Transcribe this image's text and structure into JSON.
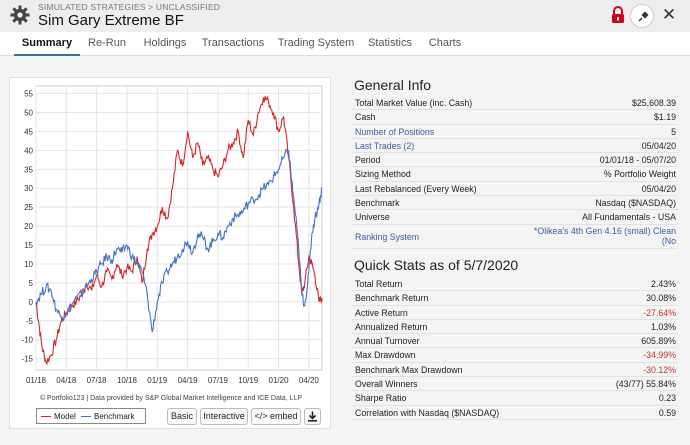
{
  "header": {
    "breadcrumb": "SIMULATED STRATEGIES > UNCLASSIFIED",
    "title": "Sim Gary Extreme BF",
    "close_label": "✕"
  },
  "tabs": [
    {
      "label": "Summary",
      "active": true
    },
    {
      "label": "Re-Run"
    },
    {
      "label": "Holdings"
    },
    {
      "label": "Transactions"
    },
    {
      "label": "Trading System"
    },
    {
      "label": "Statistics"
    },
    {
      "label": "Charts"
    }
  ],
  "chart": {
    "credit": "© Portfolio123 | Data provided by S&P Global Market Intelligence and ICE Data, LLP",
    "buttons": {
      "basic": "Basic",
      "interactive": "Interactive",
      "embed": "</> embed"
    }
  },
  "chart_data": {
    "type": "line",
    "x_ticks": [
      "01/18",
      "04/18",
      "07/18",
      "10/18",
      "01/19",
      "04/19",
      "07/19",
      "10/19",
      "01/20",
      "04/20"
    ],
    "y_ticks": [
      55,
      50,
      45,
      40,
      35,
      30,
      25,
      20,
      15,
      10,
      5,
      0,
      -5,
      -10,
      -15
    ],
    "ylim": [
      -18,
      57
    ],
    "grid": true,
    "legend": "bottom-left",
    "series": [
      {
        "name": "Model",
        "color": "#d62728",
        "x": [
          0,
          0.3,
          0.6,
          1,
          1.5,
          2,
          2.5,
          3,
          3.5,
          4,
          4.5,
          5,
          5.5,
          6,
          6.5,
          7,
          7.5,
          8,
          8.5,
          9,
          9.5,
          10,
          10.5,
          11,
          11.5,
          12,
          12.5,
          13,
          13.5,
          14,
          14.5,
          15,
          15.5,
          16,
          16.5,
          17,
          17.5,
          18,
          18.5,
          19,
          19.5,
          20,
          20.5,
          21,
          21.5,
          22,
          22.5,
          23,
          23.5,
          24,
          24.5,
          25,
          25.5,
          26,
          26.3,
          26.6,
          27,
          27.3,
          27.6,
          28,
          28.3
        ],
        "values": [
          0,
          -6,
          -12,
          -16,
          -14,
          -10,
          -5,
          -3,
          -1,
          0,
          2,
          5,
          3,
          7,
          4,
          8,
          6,
          10,
          7,
          9,
          8,
          12,
          5,
          14,
          18,
          20,
          25,
          22,
          30,
          40,
          36,
          45,
          38,
          42,
          36,
          38,
          35,
          33,
          36,
          40,
          42,
          45,
          38,
          48,
          44,
          50,
          54,
          53,
          50,
          45,
          49,
          38,
          25,
          10,
          2,
          5,
          12,
          10,
          7,
          0,
          1
        ]
      },
      {
        "name": "Benchmark",
        "color": "#4472c4",
        "x": [
          0,
          0.5,
          1,
          1.5,
          2,
          2.5,
          3,
          3.5,
          4,
          4.5,
          5,
          5.5,
          6,
          6.5,
          7,
          7.5,
          8,
          8.5,
          9,
          9.5,
          10,
          10.5,
          11,
          11.5,
          12,
          12.5,
          13,
          13.5,
          14,
          14.5,
          15,
          15.5,
          16,
          16.5,
          17,
          17.5,
          18,
          18.5,
          19,
          19.5,
          20,
          20.5,
          21,
          21.5,
          22,
          22.5,
          23,
          23.5,
          24,
          24.5,
          25,
          25.3,
          25.6,
          26,
          26.3,
          26.6,
          27,
          27.3,
          27.6,
          28,
          28.3
        ],
        "values": [
          0,
          2,
          4,
          3,
          -2,
          -4,
          -3,
          -1,
          1,
          2,
          4,
          6,
          8,
          10,
          12,
          11,
          14,
          13,
          15,
          12,
          10,
          8,
          2,
          -8,
          0,
          5,
          8,
          10,
          12,
          14,
          16,
          13,
          18,
          17,
          14,
          16,
          18,
          17,
          20,
          22,
          23,
          24,
          26,
          27,
          28,
          30,
          31,
          33,
          35,
          38,
          40,
          32,
          25,
          14,
          2,
          -1,
          8,
          18,
          22,
          26,
          30
        ]
      }
    ]
  },
  "general_info": {
    "title": "General Info",
    "rows": [
      {
        "label": "Total Market Value (inc. Cash)",
        "value": "$25,608.39"
      },
      {
        "label": "Cash",
        "value": "$1.19"
      },
      {
        "label": "Number of Positions",
        "value": "5",
        "link": true
      },
      {
        "label": "Last Trades (2)",
        "value": "05/04/20",
        "link": true
      },
      {
        "label": "Period",
        "value": "01/01/18 - 05/07/20"
      },
      {
        "label": "Sizing Method",
        "value": "% Portfolio Weight"
      },
      {
        "label": "Last Rebalanced (Every Week)",
        "value": "05/04/20"
      },
      {
        "label": "Benchmark",
        "value": "Nasdaq ($NASDAQ)"
      },
      {
        "label": "Universe",
        "value": "All Fundamentals - USA"
      },
      {
        "label": "Ranking System",
        "value": "*Olikea's 4th Gen 4.16 (small) Clean (No",
        "link": true,
        "tall": true
      }
    ]
  },
  "quick_stats": {
    "title": "Quick Stats as of 5/7/2020",
    "rows": [
      {
        "label": "Total Return",
        "value": "2.43%"
      },
      {
        "label": "Benchmark Return",
        "value": "30.08%"
      },
      {
        "label": "Active Return",
        "value": "-27.64%",
        "neg": true
      },
      {
        "label": "Annualized Return",
        "value": "1.03%"
      },
      {
        "label": "Annual Turnover",
        "value": "605.89%"
      },
      {
        "label": "Max Drawdown",
        "value": "-34.99%",
        "neg": true
      },
      {
        "label": "Benchmark Max Drawdown",
        "value": "-30.12%",
        "neg": true
      },
      {
        "label": "Overall Winners",
        "value": "(43/77) 55.84%"
      },
      {
        "label": "Sharpe Ratio",
        "value": "0.23"
      },
      {
        "label": "Correlation with Nasdaq ($NASDAQ)",
        "value": "0.59"
      }
    ]
  }
}
